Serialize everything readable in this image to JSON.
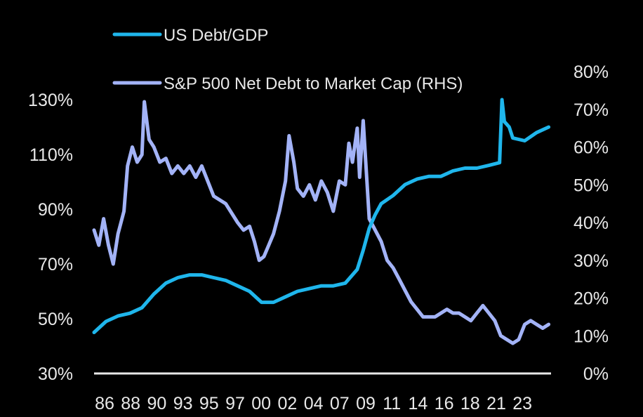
{
  "chart_data": {
    "type": "line",
    "x_labels": [
      "86",
      "88",
      "90",
      "93",
      "95",
      "97",
      "00",
      "02",
      "04",
      "07",
      "09",
      "11",
      "14",
      "16",
      "18",
      "21",
      "23"
    ],
    "left_axis": {
      "min": 30,
      "max": 130,
      "ticks": [
        {
          "value": 30,
          "label": "30%"
        },
        {
          "value": 50,
          "label": "50%"
        },
        {
          "value": 70,
          "label": "70%"
        },
        {
          "value": 90,
          "label": "90%"
        },
        {
          "value": 110,
          "label": "110%"
        },
        {
          "value": 130,
          "label": "130%"
        }
      ]
    },
    "right_axis": {
      "min": 0,
      "max": 80,
      "ticks": [
        {
          "value": 0,
          "label": "0%"
        },
        {
          "value": 10,
          "label": "10%"
        },
        {
          "value": 20,
          "label": "20%"
        },
        {
          "value": 30,
          "label": "30%"
        },
        {
          "value": 40,
          "label": "40%"
        },
        {
          "value": 50,
          "label": "50%"
        },
        {
          "value": 60,
          "label": "60%"
        },
        {
          "value": 70,
          "label": "70%"
        },
        {
          "value": 80,
          "label": "80%"
        }
      ]
    },
    "grid": false,
    "legend_position": "top-left",
    "series": [
      {
        "name": "US Debt/GDP",
        "axis": "left",
        "color": "#1fb6ec",
        "x": [
          1986,
          1987,
          1988,
          1989,
          1990,
          1991,
          1992,
          1993,
          1994,
          1995,
          1996,
          1997,
          1998,
          1999,
          2000,
          2001,
          2002,
          2003,
          2004,
          2005,
          2006,
          2007,
          2008,
          2008.5,
          2009,
          2009.5,
          2010,
          2011,
          2012,
          2013,
          2014,
          2015,
          2016,
          2017,
          2018,
          2019,
          2019.9,
          2020.1,
          2020.3,
          2020.7,
          2021,
          2022,
          2023,
          2024
        ],
        "values": [
          45,
          49,
          51,
          52,
          54,
          59,
          63,
          65,
          66,
          66,
          65,
          64,
          62,
          60,
          56,
          56,
          58,
          60,
          61,
          62,
          62,
          63,
          68,
          75,
          83,
          88,
          92,
          95,
          99,
          101,
          102,
          102,
          104,
          105,
          105,
          106,
          107,
          130,
          122,
          120,
          116,
          115,
          118,
          120
        ]
      },
      {
        "name": "S&P 500 Net Debt to Market Cap (RHS)",
        "axis": "right",
        "color": "#a3b3f7",
        "x": [
          1986,
          1986.4,
          1986.8,
          1987.2,
          1987.6,
          1988,
          1988.5,
          1988.8,
          1989.2,
          1989.6,
          1990,
          1990.2,
          1990.6,
          1991,
          1991.5,
          1992,
          1992.5,
          1993,
          1993.5,
          1994,
          1994.5,
          1995,
          1995.5,
          1996,
          1997,
          1998,
          1998.5,
          1999,
          1999.4,
          1999.8,
          2000.2,
          2000.6,
          2001,
          2001.5,
          2002,
          2002.3,
          2002.7,
          2003,
          2003.5,
          2004,
          2004.5,
          2005,
          2005.5,
          2006,
          2006.5,
          2007,
          2007.3,
          2007.6,
          2008,
          2008.2,
          2008.5,
          2009,
          2009.5,
          2010,
          2010.5,
          2011,
          2011.5,
          2012,
          2012.5,
          2013,
          2013.5,
          2014,
          2014.5,
          2015,
          2015.5,
          2016,
          2016.5,
          2017,
          2017.5,
          2018,
          2018.5,
          2019,
          2019.5,
          2020,
          2020.5,
          2021,
          2021.5,
          2022,
          2022.5,
          2023,
          2023.5,
          2024
        ],
        "values": [
          38,
          34,
          41,
          34,
          29,
          37,
          43,
          55,
          60,
          56,
          58,
          72,
          62,
          60,
          56,
          57,
          53,
          55,
          53,
          55,
          52,
          55,
          51,
          47,
          45,
          40,
          38,
          39,
          35,
          30,
          31,
          34,
          37,
          43,
          51,
          63,
          56,
          49,
          47,
          50,
          46,
          51,
          48,
          43,
          51,
          50,
          61,
          56,
          65,
          52,
          67,
          41,
          38,
          35,
          30,
          28,
          25,
          22,
          19,
          17,
          15,
          15,
          15,
          16,
          17,
          16,
          16,
          15,
          14,
          16,
          18,
          16,
          14,
          10,
          9,
          8,
          9,
          13,
          14,
          13,
          12,
          13
        ]
      }
    ]
  }
}
